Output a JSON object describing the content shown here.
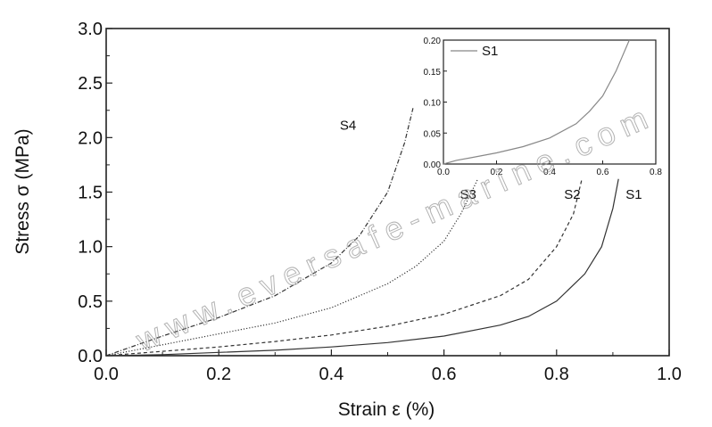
{
  "chart_data": [
    {
      "type": "line",
      "title": "",
      "xlabel": "Strain ε (%)",
      "ylabel": "Stress σ (MPa)",
      "xlim": [
        0.0,
        1.0
      ],
      "ylim": [
        0.0,
        3.0
      ],
      "x_ticks": [
        "0.0",
        "0.2",
        "0.4",
        "0.6",
        "0.8",
        "1.0"
      ],
      "y_ticks": [
        "0.0",
        "0.5",
        "1.0",
        "1.5",
        "2.0",
        "2.5",
        "3.0"
      ],
      "grid": false,
      "series": [
        {
          "name": "S1",
          "color": "#333333",
          "line_style": "solid",
          "points": [
            [
              0.0,
              0.0
            ],
            [
              0.1,
              0.01
            ],
            [
              0.2,
              0.03
            ],
            [
              0.3,
              0.05
            ],
            [
              0.4,
              0.08
            ],
            [
              0.5,
              0.12
            ],
            [
              0.6,
              0.18
            ],
            [
              0.7,
              0.28
            ],
            [
              0.75,
              0.36
            ],
            [
              0.8,
              0.5
            ],
            [
              0.85,
              0.75
            ],
            [
              0.88,
              1.0
            ],
            [
              0.9,
              1.35
            ],
            [
              0.91,
              1.62
            ]
          ]
        },
        {
          "name": "S2",
          "color": "#333333",
          "line_style": "dashed",
          "points": [
            [
              0.0,
              0.0
            ],
            [
              0.1,
              0.04
            ],
            [
              0.2,
              0.08
            ],
            [
              0.3,
              0.13
            ],
            [
              0.4,
              0.19
            ],
            [
              0.5,
              0.27
            ],
            [
              0.6,
              0.38
            ],
            [
              0.7,
              0.55
            ],
            [
              0.75,
              0.7
            ],
            [
              0.8,
              1.0
            ],
            [
              0.83,
              1.3
            ],
            [
              0.845,
              1.62
            ]
          ]
        },
        {
          "name": "S3",
          "color": "#333333",
          "line_style": "dotted",
          "points": [
            [
              0.0,
              0.0
            ],
            [
              0.1,
              0.1
            ],
            [
              0.2,
              0.2
            ],
            [
              0.3,
              0.3
            ],
            [
              0.4,
              0.44
            ],
            [
              0.5,
              0.66
            ],
            [
              0.55,
              0.82
            ],
            [
              0.6,
              1.05
            ],
            [
              0.63,
              1.3
            ],
            [
              0.66,
              1.62
            ]
          ]
        },
        {
          "name": "S4",
          "color": "#333333",
          "line_style": "dash-dot",
          "points": [
            [
              0.0,
              0.0
            ],
            [
              0.1,
              0.18
            ],
            [
              0.2,
              0.35
            ],
            [
              0.3,
              0.55
            ],
            [
              0.4,
              0.85
            ],
            [
              0.45,
              1.1
            ],
            [
              0.5,
              1.5
            ],
            [
              0.53,
              1.95
            ],
            [
              0.545,
              2.27
            ]
          ]
        }
      ]
    },
    {
      "type": "line",
      "title": "",
      "xlabel": "",
      "ylabel": "",
      "xlim": [
        0.0,
        0.8
      ],
      "ylim": [
        0.0,
        0.2
      ],
      "x_ticks": [
        "0.0",
        "0.2",
        "0.4",
        "0.6",
        "0.8"
      ],
      "y_ticks": [
        "0.00",
        "0.05",
        "0.10",
        "0.15",
        "0.20"
      ],
      "legend": {
        "position": "top-left",
        "entries": [
          "S1"
        ]
      },
      "series": [
        {
          "name": "S1",
          "color": "#888888",
          "line_style": "solid",
          "points": [
            [
              0.0,
              0.0
            ],
            [
              0.05,
              0.006
            ],
            [
              0.1,
              0.01
            ],
            [
              0.2,
              0.018
            ],
            [
              0.3,
              0.028
            ],
            [
              0.4,
              0.042
            ],
            [
              0.5,
              0.065
            ],
            [
              0.55,
              0.085
            ],
            [
              0.6,
              0.11
            ],
            [
              0.65,
              0.15
            ],
            [
              0.7,
              0.2
            ]
          ]
        }
      ]
    }
  ],
  "watermark": "www.eversafe-marine.com"
}
